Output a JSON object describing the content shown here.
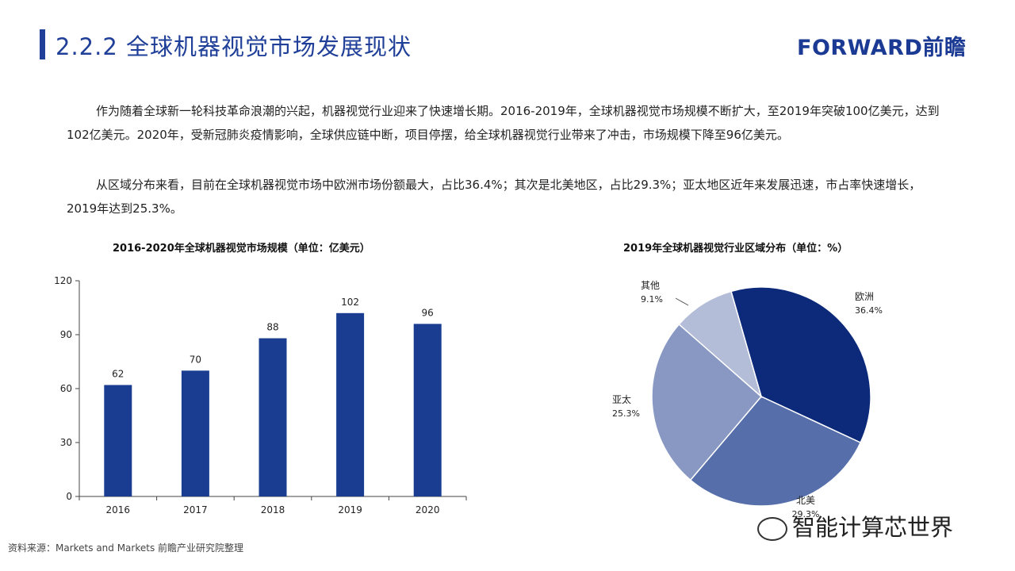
{
  "header": {
    "title": "2.2.2 全球机器视觉市场发展现状",
    "logo_text": "FORWARD前瞻"
  },
  "body": {
    "paragraph1": "作为随着全球新一轮科技革命浪潮的兴起，机器视觉行业迎来了快速增长期。2016-2019年，全球机器视觉市场规模不断扩大，至2019年突破100亿美元，达到102亿美元。2020年，受新冠肺炎疫情影响，全球供应链中断，项目停摆，给全球机器视觉行业带来了冲击，市场规模下降至96亿美元。",
    "paragraph2": "从区域分布来看，目前在全球机器视觉市场中欧洲市场份额最大，占比36.4%；其次是北美地区，占比29.3%；亚太地区近年来发展迅速，市占率快速增长，2019年达到25.3%。"
  },
  "footer": {
    "source": "资料来源：Markets and Markets 前瞻产业研究院整理",
    "watermark": "智能计算芯世界"
  },
  "colors": {
    "accent": "#1f3f98",
    "bar": "#1a3d91",
    "pie": [
      "#0c2a79",
      "#566fab",
      "#8898c3",
      "#b3bdd8"
    ]
  },
  "chart_data": [
    {
      "type": "bar",
      "title": "2016-2020年全球机器视觉市场规模（单位：亿美元）",
      "categories": [
        "2016",
        "2017",
        "2018",
        "2019",
        "2020"
      ],
      "values": [
        62,
        70,
        88,
        102,
        96
      ],
      "ylim": [
        0,
        120
      ],
      "yticks": [
        0,
        30,
        60,
        90,
        120
      ],
      "xlabel": "",
      "ylabel": "",
      "grid": false
    },
    {
      "type": "pie",
      "title": "2019年全球机器视觉行业区域分布（单位：%）",
      "slices": [
        {
          "label": "欧洲",
          "value": 36.4,
          "display": "36.4%"
        },
        {
          "label": "北美",
          "value": 29.3,
          "display": "29.3%"
        },
        {
          "label": "亚太",
          "value": 25.3,
          "display": "25.3%"
        },
        {
          "label": "其他",
          "value": 9.1,
          "display": "9.1%"
        }
      ]
    }
  ]
}
